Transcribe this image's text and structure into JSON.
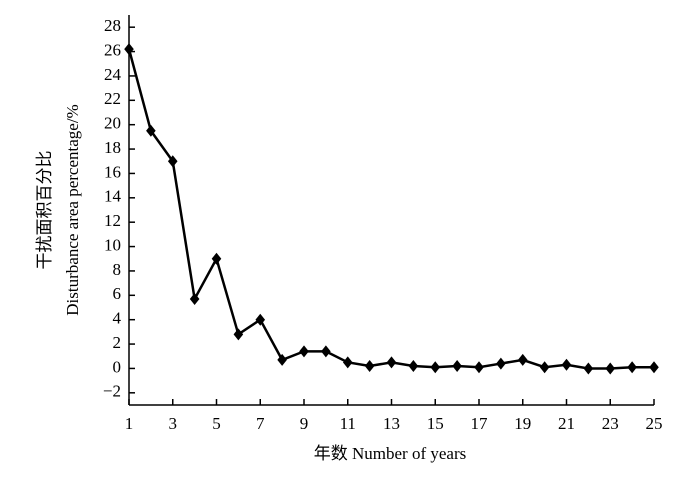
{
  "chart_data": {
    "type": "line",
    "x": [
      1,
      2,
      3,
      4,
      5,
      6,
      7,
      8,
      9,
      10,
      11,
      12,
      13,
      14,
      15,
      16,
      17,
      18,
      19,
      20,
      21,
      22,
      23,
      24,
      25
    ],
    "series": [
      {
        "color": "#000000",
        "values": [
          26.2,
          19.5,
          17,
          5.7,
          9,
          2.8,
          4,
          0.7,
          1.4,
          1.4,
          0.5,
          0.2,
          0.5,
          0.2,
          0.1,
          0.2,
          0.1,
          0.4,
          0.7,
          0.1,
          0.3,
          0,
          0,
          0.1,
          0.1
        ]
      }
    ],
    "xlabel": "年数 Number of years",
    "ylabel": [
      "干扰面积百分比",
      "Disturbance area percentage/%"
    ],
    "xlim": [
      1,
      25
    ],
    "xticks": [
      1,
      3,
      5,
      7,
      9,
      11,
      13,
      15,
      17,
      19,
      21,
      23,
      25
    ],
    "ylim": [
      -3,
      29
    ],
    "yticks": [
      {
        "value": -2,
        "label": "−2"
      },
      0,
      2,
      4,
      6,
      8,
      10,
      12,
      14,
      16,
      18,
      20,
      22,
      24,
      26,
      28
    ]
  }
}
